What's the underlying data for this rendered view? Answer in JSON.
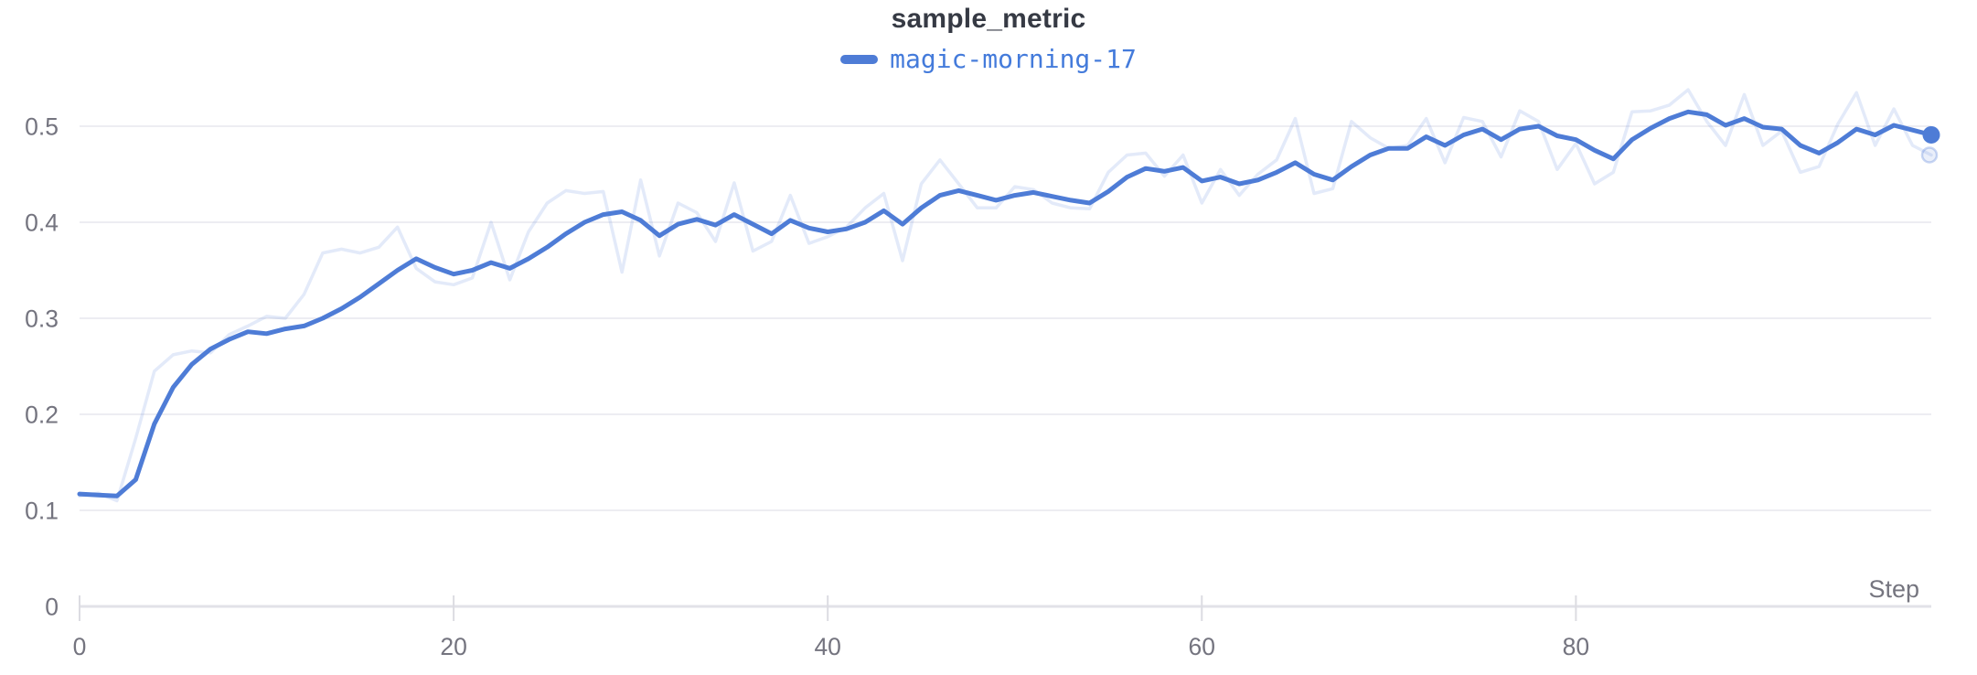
{
  "legend": {
    "run_name": "magic-morning-17",
    "run_color": "#4E7CD6"
  },
  "colors": {
    "run_line": "#4E7CD6",
    "run_line_faint": "rgba(80,124,216,0.16)",
    "legend_text": "#447BDB",
    "title_text": "#363A44",
    "tick_label": "#74747F",
    "gridline": "#EDEDF2",
    "axis_line": "#E2E2E8",
    "tick_mark": "#DCDCE2",
    "background": "#FFFFFF"
  },
  "chart_data": {
    "type": "line",
    "title": "sample_metric",
    "xlabel": "Step",
    "ylabel": "",
    "grid": true,
    "legend_position": "top-center",
    "xlim": [
      0,
      99
    ],
    "ylim": [
      0,
      0.55
    ],
    "x_tick_values": [
      0,
      20,
      40,
      60,
      80
    ],
    "x_tick_labels": [
      "0",
      "20",
      "40",
      "60",
      "80"
    ],
    "y_tick_values": [
      0,
      0.1,
      0.2,
      0.3,
      0.4,
      0.5
    ],
    "y_tick_labels": [
      "0",
      "0.1",
      "0.2",
      "0.3",
      "0.4",
      "0.5"
    ],
    "x_step": 1,
    "series": [
      {
        "name": "magic-morning-17",
        "role": "original-unsmoothed",
        "opacity": 0.16,
        "values": [
          0.115,
          0.118,
          0.11,
          0.175,
          0.245,
          0.262,
          0.266,
          0.264,
          0.283,
          0.292,
          0.302,
          0.3,
          0.325,
          0.368,
          0.372,
          0.368,
          0.374,
          0.395,
          0.352,
          0.338,
          0.335,
          0.342,
          0.4,
          0.34,
          0.39,
          0.42,
          0.433,
          0.43,
          0.432,
          0.348,
          0.444,
          0.365,
          0.42,
          0.41,
          0.38,
          0.441,
          0.37,
          0.38,
          0.428,
          0.378,
          0.385,
          0.395,
          0.415,
          0.43,
          0.36,
          0.44,
          0.465,
          0.44,
          0.415,
          0.415,
          0.437,
          0.434,
          0.42,
          0.415,
          0.414,
          0.452,
          0.47,
          0.472,
          0.448,
          0.47,
          0.42,
          0.455,
          0.428,
          0.45,
          0.465,
          0.508,
          0.43,
          0.435,
          0.505,
          0.488,
          0.477,
          0.48,
          0.508,
          0.462,
          0.509,
          0.505,
          0.468,
          0.516,
          0.505,
          0.455,
          0.482,
          0.44,
          0.452,
          0.515,
          0.516,
          0.522,
          0.538,
          0.505,
          0.48,
          0.533,
          0.48,
          0.495,
          0.452,
          0.458,
          0.502,
          0.535,
          0.48,
          0.518,
          0.48,
          0.47
        ]
      },
      {
        "name": "magic-morning-17",
        "role": "smoothed",
        "opacity": 1,
        "values": [
          0.117,
          0.116,
          0.115,
          0.132,
          0.19,
          0.228,
          0.252,
          0.268,
          0.278,
          0.286,
          0.284,
          0.289,
          0.292,
          0.3,
          0.31,
          0.322,
          0.336,
          0.35,
          0.362,
          0.353,
          0.346,
          0.35,
          0.358,
          0.352,
          0.362,
          0.374,
          0.388,
          0.4,
          0.408,
          0.411,
          0.402,
          0.386,
          0.398,
          0.403,
          0.397,
          0.408,
          0.398,
          0.388,
          0.402,
          0.394,
          0.39,
          0.393,
          0.4,
          0.412,
          0.398,
          0.415,
          0.428,
          0.433,
          0.428,
          0.423,
          0.428,
          0.431,
          0.427,
          0.423,
          0.42,
          0.432,
          0.447,
          0.456,
          0.453,
          0.457,
          0.443,
          0.447,
          0.44,
          0.444,
          0.452,
          0.462,
          0.45,
          0.444,
          0.458,
          0.47,
          0.477,
          0.477,
          0.489,
          0.48,
          0.491,
          0.497,
          0.486,
          0.497,
          0.5,
          0.49,
          0.486,
          0.475,
          0.466,
          0.486,
          0.498,
          0.508,
          0.515,
          0.512,
          0.501,
          0.508,
          0.499,
          0.497,
          0.48,
          0.472,
          0.483,
          0.497,
          0.491,
          0.501,
          0.496,
          0.491
        ]
      }
    ]
  }
}
